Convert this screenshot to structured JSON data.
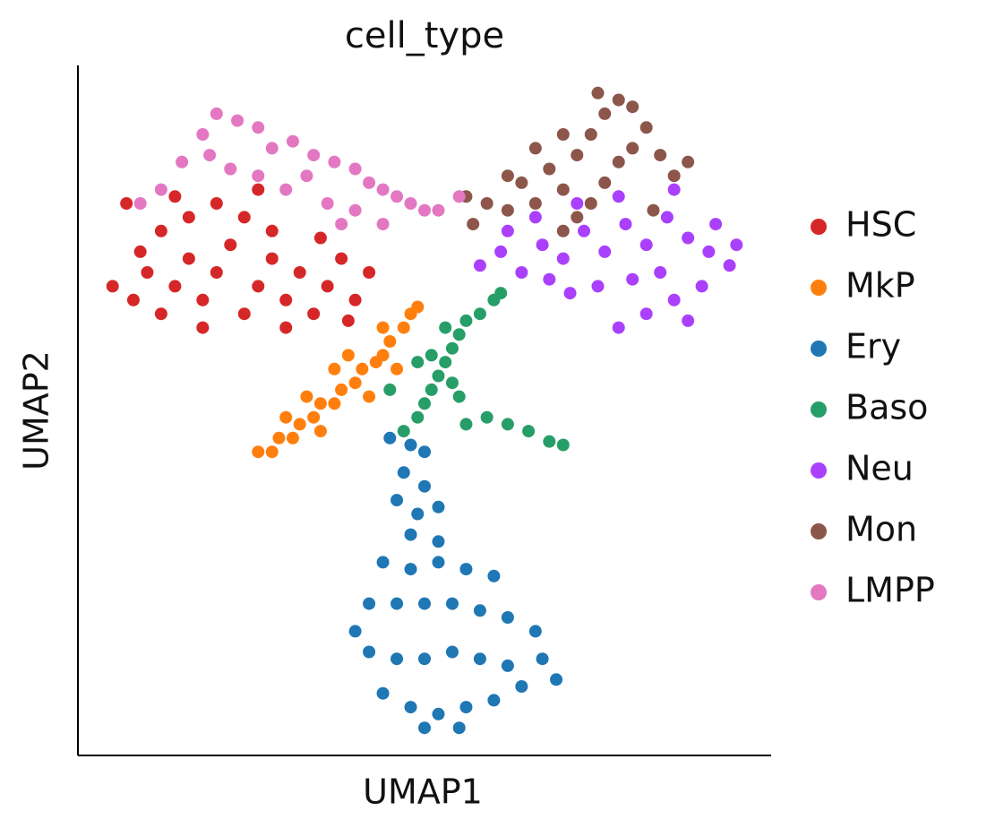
{
  "chart_data": {
    "type": "scatter",
    "title": "cell_type",
    "xlabel": "UMAP1",
    "ylabel": "UMAP2",
    "xlim": [
      0,
      100
    ],
    "ylim": [
      0,
      100
    ],
    "legend": "right",
    "series": [
      {
        "name": "HSC",
        "color": "#d62728",
        "x": [
          5,
          8,
          10,
          12,
          14,
          16,
          18,
          20,
          22,
          24,
          26,
          28,
          30,
          32,
          34,
          36,
          38,
          40,
          42,
          12,
          16,
          20,
          24,
          28,
          9,
          35,
          7,
          18,
          30,
          26,
          14,
          39
        ],
        "y": [
          68,
          66,
          70,
          64,
          68,
          72,
          66,
          70,
          74,
          64,
          68,
          72,
          66,
          70,
          64,
          68,
          72,
          66,
          70,
          76,
          78,
          80,
          78,
          76,
          73,
          75,
          80,
          62,
          62,
          82,
          81,
          63
        ]
      },
      {
        "name": "MkP",
        "color": "#ff7f0e",
        "x": [
          26,
          28,
          29,
          31,
          32,
          34,
          35,
          37,
          38,
          40,
          41,
          43,
          44,
          45,
          47,
          48,
          33,
          37,
          42,
          39,
          30,
          46,
          49,
          35,
          44
        ],
        "y": [
          44,
          44,
          46,
          46,
          48,
          49,
          51,
          51,
          53,
          54,
          56,
          57,
          58,
          60,
          62,
          64,
          52,
          56,
          52,
          58,
          49,
          56,
          65,
          47,
          62
        ]
      },
      {
        "name": "Ery",
        "color": "#1f77b4",
        "x": [
          45,
          48,
          50,
          47,
          50,
          46,
          49,
          52,
          48,
          52,
          44,
          48,
          52,
          56,
          60,
          42,
          46,
          50,
          54,
          58,
          62,
          66,
          42,
          46,
          50,
          54,
          58,
          62,
          67,
          44,
          48,
          52,
          56,
          60,
          64,
          50,
          55,
          40,
          69
        ],
        "y": [
          46,
          45,
          44,
          41,
          39,
          37,
          35,
          36,
          32,
          31,
          28,
          27,
          28,
          27,
          26,
          22,
          22,
          22,
          22,
          21,
          20,
          18,
          15,
          14,
          14,
          15,
          14,
          13,
          14,
          9,
          7,
          6,
          7,
          8,
          10,
          4,
          4,
          18,
          11
        ]
      },
      {
        "name": "Baso",
        "color": "#279e68",
        "x": [
          47,
          49,
          50,
          51,
          52,
          53,
          54,
          55,
          53,
          56,
          58,
          60,
          61,
          51,
          54,
          56,
          59,
          62,
          65,
          70,
          68,
          45,
          49,
          55
        ],
        "y": [
          47,
          49,
          51,
          53,
          55,
          57,
          59,
          61,
          62,
          63,
          64,
          66,
          67,
          58,
          54,
          48,
          49,
          48,
          47,
          45,
          45.5,
          53,
          57,
          52
        ]
      },
      {
        "name": "Neu",
        "color": "#aa40fc",
        "x": [
          58,
          61,
          64,
          67,
          70,
          73,
          76,
          79,
          82,
          85,
          88,
          91,
          94,
          90,
          86,
          82,
          78,
          84,
          80,
          75,
          71,
          68,
          62,
          66,
          72,
          78,
          86,
          92,
          88,
          95
        ],
        "y": [
          71,
          73,
          70,
          74,
          72,
          76,
          73,
          77,
          74,
          78,
          75,
          73,
          71,
          68,
          66,
          64,
          62,
          70,
          69,
          68,
          67,
          69,
          76,
          78,
          80,
          81,
          82,
          77,
          63,
          74
        ]
      },
      {
        "name": "Mon",
        "color": "#8c564b",
        "x": [
          56,
          59,
          62,
          64,
          66,
          68,
          70,
          72,
          74,
          76,
          78,
          80,
          82,
          80,
          78,
          76,
          74,
          72,
          70,
          84,
          86,
          88,
          66,
          70,
          62,
          57,
          83,
          75
        ],
        "y": [
          81,
          80,
          79,
          83,
          80,
          85,
          82,
          87,
          90,
          93,
          95,
          94,
          91,
          88,
          86,
          83,
          80,
          78,
          76,
          87,
          84,
          86,
          88,
          90,
          84,
          77,
          79,
          96
        ]
      },
      {
        "name": "LMPP",
        "color": "#e377c2",
        "x": [
          9,
          12,
          15,
          18,
          20,
          23,
          26,
          28,
          31,
          34,
          37,
          40,
          42,
          44,
          46,
          48,
          50,
          52,
          55,
          22,
          26,
          30,
          36,
          40,
          19,
          33,
          44,
          38
        ],
        "y": [
          80,
          82,
          86,
          90,
          93,
          92,
          91,
          88,
          89,
          87,
          86,
          85,
          83,
          82,
          81,
          80,
          79,
          79,
          81,
          85,
          84,
          82,
          80,
          79,
          87,
          84,
          77,
          77
        ]
      }
    ]
  }
}
